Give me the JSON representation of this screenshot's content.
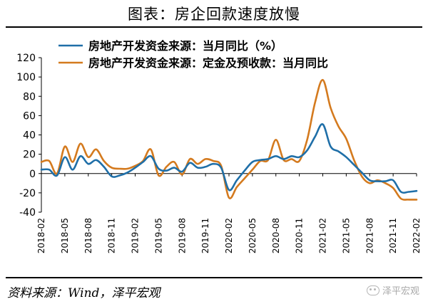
{
  "header": {
    "title": "图表：房企回款速度放慢"
  },
  "footer": {
    "source": "资料来源：Wind，泽平宏观",
    "watermark": "泽平宏观"
  },
  "chart_data": {
    "type": "line",
    "ylim": [
      -40,
      120
    ],
    "yticks": [
      -40,
      -20,
      0,
      20,
      40,
      60,
      80,
      100,
      120
    ],
    "xlim": [
      "2018-02",
      "2022-02"
    ],
    "xticks": [
      "2018-02",
      "2018-05",
      "2018-08",
      "2018-11",
      "2019-02",
      "2019-05",
      "2019-08",
      "2019-11",
      "2020-02",
      "2020-05",
      "2020-08",
      "2020-11",
      "2021-02",
      "2021-05",
      "2021-08",
      "2021-11",
      "2022-02"
    ],
    "legend_position": "top-left",
    "grid": false,
    "series": [
      {
        "name": "房地产开发资金来源：当月同比（%）",
        "color": "#1f6fa8",
        "points": [
          [
            "2018-02",
            4
          ],
          [
            "2018-03",
            4
          ],
          [
            "2018-04",
            -2
          ],
          [
            "2018-05",
            17
          ],
          [
            "2018-06",
            4
          ],
          [
            "2018-07",
            18
          ],
          [
            "2018-08",
            10
          ],
          [
            "2018-09",
            14
          ],
          [
            "2018-10",
            7
          ],
          [
            "2018-11",
            -3
          ],
          [
            "2018-12",
            -2
          ],
          [
            "2019-01",
            1
          ],
          [
            "2019-02",
            6
          ],
          [
            "2019-03",
            12
          ],
          [
            "2019-04",
            18
          ],
          [
            "2019-05",
            5
          ],
          [
            "2019-06",
            3
          ],
          [
            "2019-07",
            6
          ],
          [
            "2019-08",
            2
          ],
          [
            "2019-09",
            11
          ],
          [
            "2019-10",
            6
          ],
          [
            "2019-11",
            7
          ],
          [
            "2019-12",
            10
          ],
          [
            "2020-01",
            6
          ],
          [
            "2020-02",
            -17
          ],
          [
            "2020-03",
            -7
          ],
          [
            "2020-04",
            3
          ],
          [
            "2020-05",
            12
          ],
          [
            "2020-06",
            14
          ],
          [
            "2020-07",
            15
          ],
          [
            "2020-08",
            18
          ],
          [
            "2020-09",
            15
          ],
          [
            "2020-10",
            18
          ],
          [
            "2020-11",
            17
          ],
          [
            "2020-12",
            24
          ],
          [
            "2021-01",
            38
          ],
          [
            "2021-02",
            51
          ],
          [
            "2021-03",
            28
          ],
          [
            "2021-04",
            23
          ],
          [
            "2021-05",
            17
          ],
          [
            "2021-06",
            9
          ],
          [
            "2021-07",
            1
          ],
          [
            "2021-08",
            -7
          ],
          [
            "2021-09",
            -8
          ],
          [
            "2021-10",
            -8
          ],
          [
            "2021-11",
            -7
          ],
          [
            "2021-12",
            -19
          ],
          [
            "2022-01",
            -19
          ],
          [
            "2022-02",
            -18
          ]
        ]
      },
      {
        "name": "房地产开发资金来源：定金及预收款：当月同比",
        "color": "#d47a1e",
        "points": [
          [
            "2018-02",
            12
          ],
          [
            "2018-03",
            13
          ],
          [
            "2018-04",
            0
          ],
          [
            "2018-05",
            28
          ],
          [
            "2018-06",
            12
          ],
          [
            "2018-07",
            31
          ],
          [
            "2018-08",
            17
          ],
          [
            "2018-09",
            25
          ],
          [
            "2018-10",
            13
          ],
          [
            "2018-11",
            6
          ],
          [
            "2018-12",
            5
          ],
          [
            "2019-01",
            5
          ],
          [
            "2019-02",
            8
          ],
          [
            "2019-03",
            13
          ],
          [
            "2019-04",
            25
          ],
          [
            "2019-05",
            -2
          ],
          [
            "2019-06",
            7
          ],
          [
            "2019-07",
            12
          ],
          [
            "2019-08",
            -1
          ],
          [
            "2019-09",
            15
          ],
          [
            "2019-10",
            10
          ],
          [
            "2019-11",
            15
          ],
          [
            "2019-12",
            13
          ],
          [
            "2020-01",
            8
          ],
          [
            "2020-02",
            -25
          ],
          [
            "2020-03",
            -14
          ],
          [
            "2020-04",
            -5
          ],
          [
            "2020-05",
            4
          ],
          [
            "2020-06",
            13
          ],
          [
            "2020-07",
            14
          ],
          [
            "2020-08",
            35
          ],
          [
            "2020-09",
            14
          ],
          [
            "2020-10",
            15
          ],
          [
            "2020-11",
            13
          ],
          [
            "2020-12",
            35
          ],
          [
            "2021-01",
            73
          ],
          [
            "2021-02",
            97
          ],
          [
            "2021-03",
            68
          ],
          [
            "2021-04",
            49
          ],
          [
            "2021-05",
            36
          ],
          [
            "2021-06",
            14
          ],
          [
            "2021-07",
            -3
          ],
          [
            "2021-08",
            -10
          ],
          [
            "2021-09",
            -7
          ],
          [
            "2021-10",
            -10
          ],
          [
            "2021-11",
            -15
          ],
          [
            "2021-12",
            -26
          ],
          [
            "2022-01",
            -27
          ],
          [
            "2022-02",
            -27
          ]
        ]
      }
    ]
  }
}
